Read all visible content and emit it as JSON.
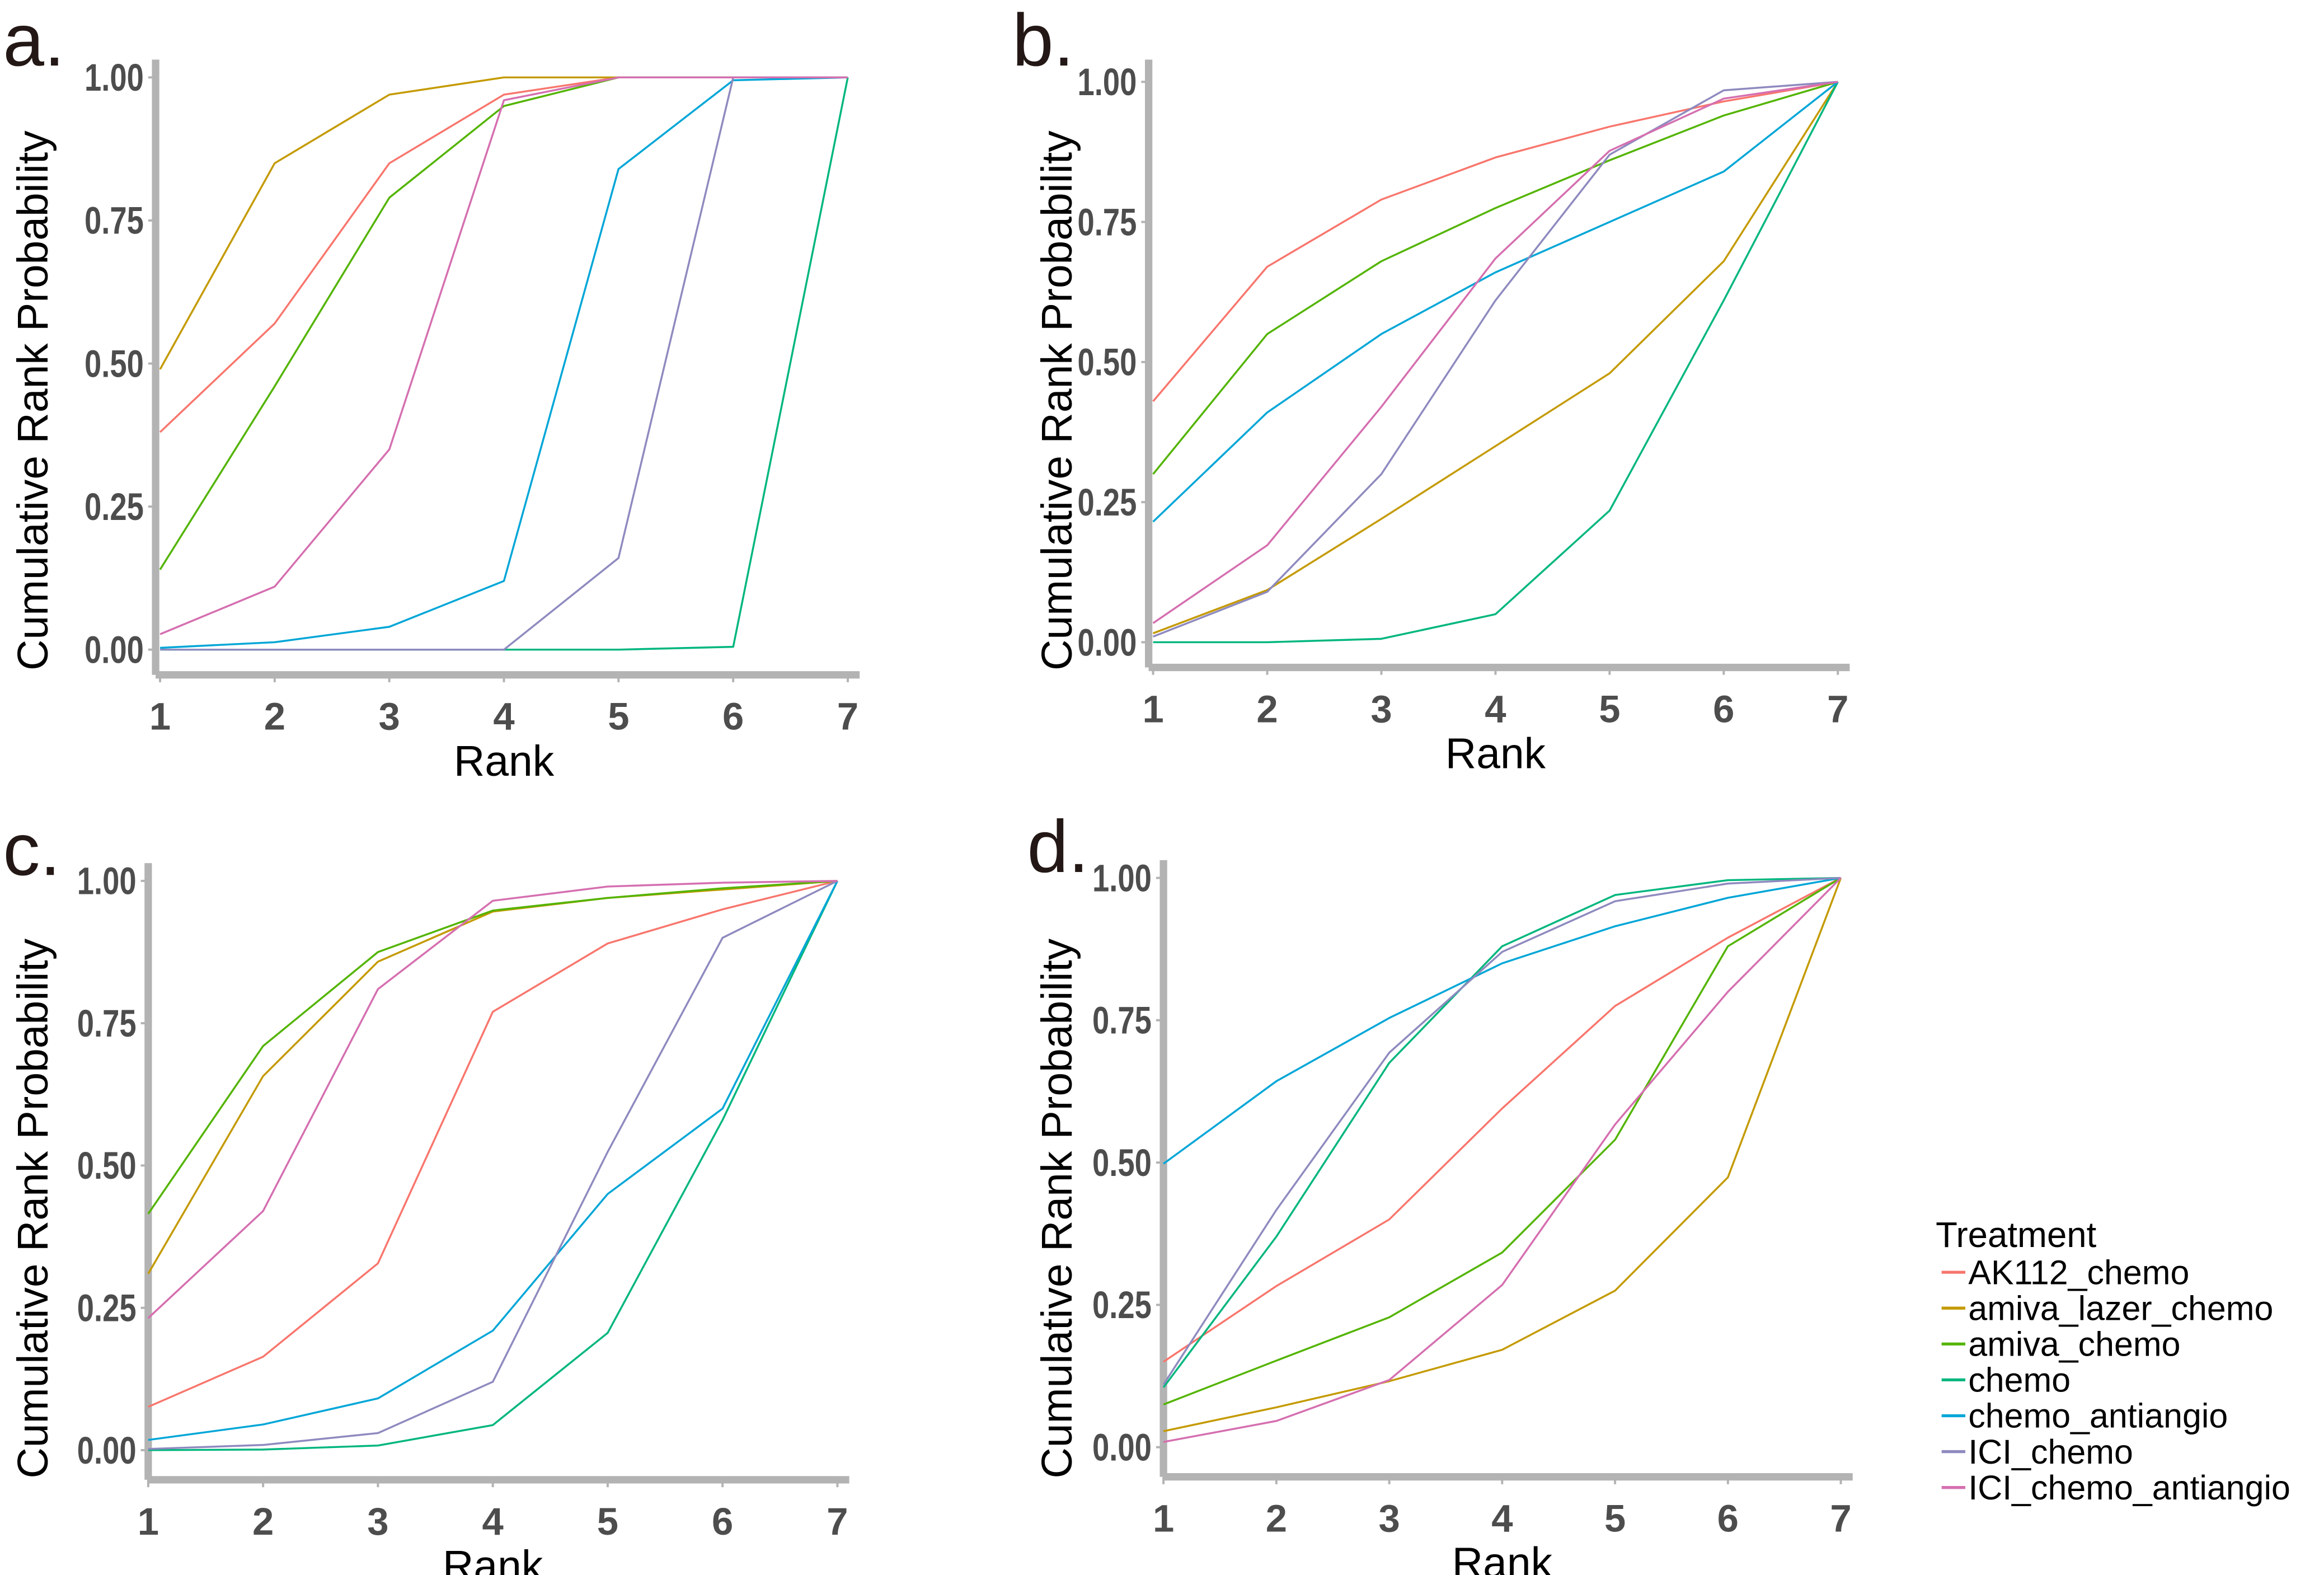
{
  "chart_data": {
    "legend": {
      "title": "Treatment",
      "placement": "bottom-right",
      "entries": [
        {
          "name": "AK112_chemo",
          "color": "#F8766D"
        },
        {
          "name": "amiva_lazer_chemo",
          "color": "#C49A00"
        },
        {
          "name": "amiva_chemo",
          "color": "#53B400"
        },
        {
          "name": "chemo",
          "color": "#00B67E"
        },
        {
          "name": "chemo_antiangio",
          "color": "#00A6D7"
        },
        {
          "name": "ICI_chemo",
          "color": "#8E8ABF"
        },
        {
          "name": "ICI_chemo_antiangio",
          "color": "#D56FB0"
        }
      ]
    },
    "panels": [
      {
        "label": "a.",
        "type": "line",
        "xlabel": "Rank",
        "ylabel": "Cumulative Rank Probability",
        "x": [
          1,
          2,
          3,
          4,
          5,
          6,
          7
        ],
        "xticks": [
          "1",
          "2",
          "3",
          "4",
          "5",
          "6",
          "7"
        ],
        "yticks": [
          "0.00",
          "0.25",
          "0.50",
          "0.75",
          "1.00"
        ],
        "ylim": [
          0,
          1
        ],
        "grid": false,
        "series": [
          {
            "name": "AK112_chemo",
            "values": [
              0.38,
              0.57,
              0.85,
              0.97,
              1,
              1,
              1
            ]
          },
          {
            "name": "amiva_lazer_chemo",
            "values": [
              0.49,
              0.85,
              0.97,
              1,
              1,
              1,
              1
            ]
          },
          {
            "name": "amiva_chemo",
            "values": [
              0.14,
              0.46,
              0.79,
              0.95,
              1,
              1,
              1
            ]
          },
          {
            "name": "chemo",
            "values": [
              0,
              0,
              0,
              0,
              0,
              0.005,
              1
            ]
          },
          {
            "name": "chemo_antiangio",
            "values": [
              0.003,
              0.013,
              0.04,
              0.12,
              0.84,
              0.995,
              1
            ]
          },
          {
            "name": "ICI_chemo",
            "values": [
              0,
              0,
              0,
              0,
              0.16,
              1,
              1
            ]
          },
          {
            "name": "ICI_chemo_antiangio",
            "values": [
              0.027,
              0.11,
              0.35,
              0.96,
              1,
              1,
              1
            ]
          }
        ]
      },
      {
        "label": "b.",
        "type": "line",
        "xlabel": "Rank",
        "ylabel": "Cumulative Rank Probability",
        "x": [
          1,
          2,
          3,
          4,
          5,
          6,
          7
        ],
        "xticks": [
          "1",
          "2",
          "3",
          "4",
          "5",
          "6",
          "7"
        ],
        "yticks": [
          "0.00",
          "0.25",
          "0.50",
          "0.75",
          "1.00"
        ],
        "ylim": [
          0,
          1
        ],
        "grid": false,
        "series": [
          {
            "name": "AK112_chemo",
            "values": [
              0.43,
              0.67,
              0.79,
              0.865,
              0.92,
              0.965,
              1
            ]
          },
          {
            "name": "amiva_lazer_chemo",
            "values": [
              0.016,
              0.093,
              0.22,
              0.35,
              0.48,
              0.68,
              1
            ]
          },
          {
            "name": "amiva_chemo",
            "values": [
              0.3,
              0.55,
              0.68,
              0.775,
              0.86,
              0.94,
              1
            ]
          },
          {
            "name": "chemo",
            "values": [
              0,
              0,
              0.006,
              0.05,
              0.235,
              0.61,
              1
            ]
          },
          {
            "name": "chemo_antiangio",
            "values": [
              0.215,
              0.41,
              0.55,
              0.66,
              0.75,
              0.84,
              1
            ]
          },
          {
            "name": "ICI_chemo",
            "values": [
              0.01,
              0.09,
              0.3,
              0.61,
              0.87,
              0.985,
              1
            ]
          },
          {
            "name": "ICI_chemo_antiangio",
            "values": [
              0.034,
              0.173,
              0.42,
              0.685,
              0.877,
              0.97,
              1
            ]
          }
        ]
      },
      {
        "label": "c.",
        "type": "line",
        "xlabel": "Rank",
        "ylabel": "Cumulative Rank Probability",
        "x": [
          1,
          2,
          3,
          4,
          5,
          6,
          7
        ],
        "xticks": [
          "1",
          "2",
          "3",
          "4",
          "5",
          "6",
          "7"
        ],
        "yticks": [
          "0.00",
          "0.25",
          "0.50",
          "0.75",
          "1.00"
        ],
        "ylim": [
          0,
          1
        ],
        "grid": false,
        "series": [
          {
            "name": "AK112_chemo",
            "values": [
              0.076,
              0.164,
              0.328,
              0.77,
              0.89,
              0.95,
              1
            ]
          },
          {
            "name": "amiva_lazer_chemo",
            "values": [
              0.31,
              0.657,
              0.858,
              0.946,
              0.97,
              0.985,
              1
            ]
          },
          {
            "name": "amiva_chemo",
            "values": [
              0.415,
              0.71,
              0.875,
              0.948,
              0.97,
              0.987,
              1
            ]
          },
          {
            "name": "chemo",
            "values": [
              0,
              0.001,
              0.008,
              0.044,
              0.206,
              0.58,
              1
            ]
          },
          {
            "name": "chemo_antiangio",
            "values": [
              0.018,
              0.045,
              0.091,
              0.21,
              0.45,
              0.6,
              1
            ]
          },
          {
            "name": "ICI_chemo",
            "values": [
              0.002,
              0.009,
              0.03,
              0.12,
              0.524,
              0.9,
              1
            ]
          },
          {
            "name": "ICI_chemo_antiangio",
            "values": [
              0.232,
              0.42,
              0.81,
              0.965,
              0.99,
              0.997,
              1
            ]
          }
        ]
      },
      {
        "label": "d.",
        "type": "line",
        "xlabel": "Rank",
        "ylabel": "Cumulative Rank Probability",
        "x": [
          1,
          2,
          3,
          4,
          5,
          6,
          7
        ],
        "xticks": [
          "1",
          "2",
          "3",
          "4",
          "5",
          "6",
          "7"
        ],
        "yticks": [
          "0.00",
          "0.25",
          "0.50",
          "0.75",
          "1.00"
        ],
        "ylim": [
          0,
          1
        ],
        "grid": false,
        "series": [
          {
            "name": "AK112_chemo",
            "values": [
              0.15,
              0.283,
              0.4,
              0.595,
              0.775,
              0.895,
              1
            ]
          },
          {
            "name": "amiva_lazer_chemo",
            "values": [
              0.028,
              0.07,
              0.116,
              0.171,
              0.275,
              0.474,
              1
            ]
          },
          {
            "name": "amiva_chemo",
            "values": [
              0.075,
              0.152,
              0.228,
              0.342,
              0.54,
              0.88,
              1
            ]
          },
          {
            "name": "chemo",
            "values": [
              0.105,
              0.37,
              0.675,
              0.88,
              0.97,
              0.996,
              1
            ]
          },
          {
            "name": "chemo_antiangio",
            "values": [
              0.498,
              0.643,
              0.754,
              0.85,
              0.915,
              0.965,
              1
            ]
          },
          {
            "name": "ICI_chemo",
            "values": [
              0.11,
              0.417,
              0.693,
              0.87,
              0.959,
              0.99,
              1
            ]
          },
          {
            "name": "ICI_chemo_antiangio",
            "values": [
              0.009,
              0.046,
              0.118,
              0.285,
              0.567,
              0.8,
              1
            ]
          }
        ]
      }
    ]
  }
}
